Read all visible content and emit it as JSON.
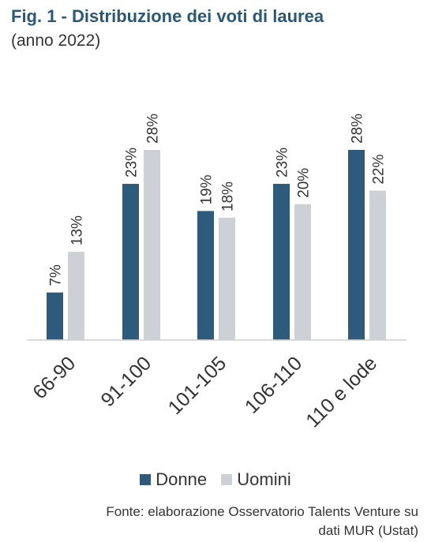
{
  "header": {
    "title": "Fig. 1 - Distribuzione dei voti di laurea",
    "subtitle": "(anno 2022)"
  },
  "source": {
    "line1": "Fonte: elaborazione Osservatorio Talents Venture su",
    "line2": "dati MUR (Ustat)"
  },
  "chart_data": {
    "type": "bar",
    "categories": [
      "66-90",
      "91-100",
      "101-105",
      "106-110",
      "110 e lode"
    ],
    "series": [
      {
        "name": "Donne",
        "values": [
          7,
          23,
          19,
          23,
          28
        ],
        "labels": [
          "7%",
          "23%",
          "19%",
          "23%",
          "28%"
        ],
        "color": "#2e5b7c"
      },
      {
        "name": "Uomini",
        "values": [
          13,
          28,
          18,
          20,
          22
        ],
        "labels": [
          "13%",
          "28%",
          "18%",
          "20%",
          "22%"
        ],
        "color": "#cdd1d6"
      }
    ],
    "ylim": [
      0,
      28
    ],
    "unit": "%",
    "legend_position": "bottom",
    "grid": false
  }
}
